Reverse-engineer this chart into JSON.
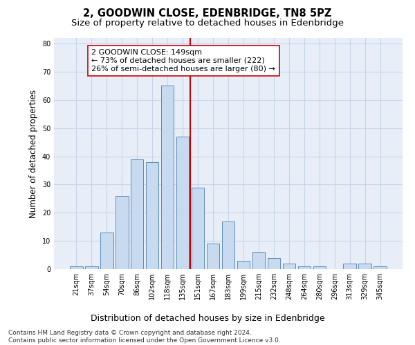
{
  "title": "2, GOODWIN CLOSE, EDENBRIDGE, TN8 5PZ",
  "subtitle": "Size of property relative to detached houses in Edenbridge",
  "xlabel": "Distribution of detached houses by size in Edenbridge",
  "ylabel": "Number of detached properties",
  "categories": [
    "21sqm",
    "37sqm",
    "54sqm",
    "70sqm",
    "86sqm",
    "102sqm",
    "118sqm",
    "135sqm",
    "151sqm",
    "167sqm",
    "183sqm",
    "199sqm",
    "215sqm",
    "232sqm",
    "248sqm",
    "264sqm",
    "280sqm",
    "296sqm",
    "313sqm",
    "329sqm",
    "345sqm"
  ],
  "values": [
    1,
    1,
    13,
    26,
    39,
    38,
    65,
    47,
    29,
    9,
    17,
    3,
    6,
    4,
    2,
    1,
    1,
    0,
    2,
    2,
    1
  ],
  "bar_color": "#c8daf0",
  "bar_edge_color": "#5b8db8",
  "vline_color": "#cc0000",
  "annotation_text": "2 GOODWIN CLOSE: 149sqm\n← 73% of detached houses are smaller (222)\n26% of semi-detached houses are larger (80) →",
  "annotation_box_color": "#ffffff",
  "annotation_box_edge": "#cc0000",
  "ylim": [
    0,
    82
  ],
  "yticks": [
    0,
    10,
    20,
    30,
    40,
    50,
    60,
    70,
    80
  ],
  "grid_color": "#c8d4e8",
  "background_color": "#e8eef8",
  "footer": "Contains HM Land Registry data © Crown copyright and database right 2024.\nContains public sector information licensed under the Open Government Licence v3.0.",
  "title_fontsize": 10.5,
  "subtitle_fontsize": 9.5,
  "xlabel_fontsize": 9,
  "ylabel_fontsize": 8.5,
  "tick_fontsize": 7,
  "footer_fontsize": 6.5,
  "annotation_fontsize": 8
}
